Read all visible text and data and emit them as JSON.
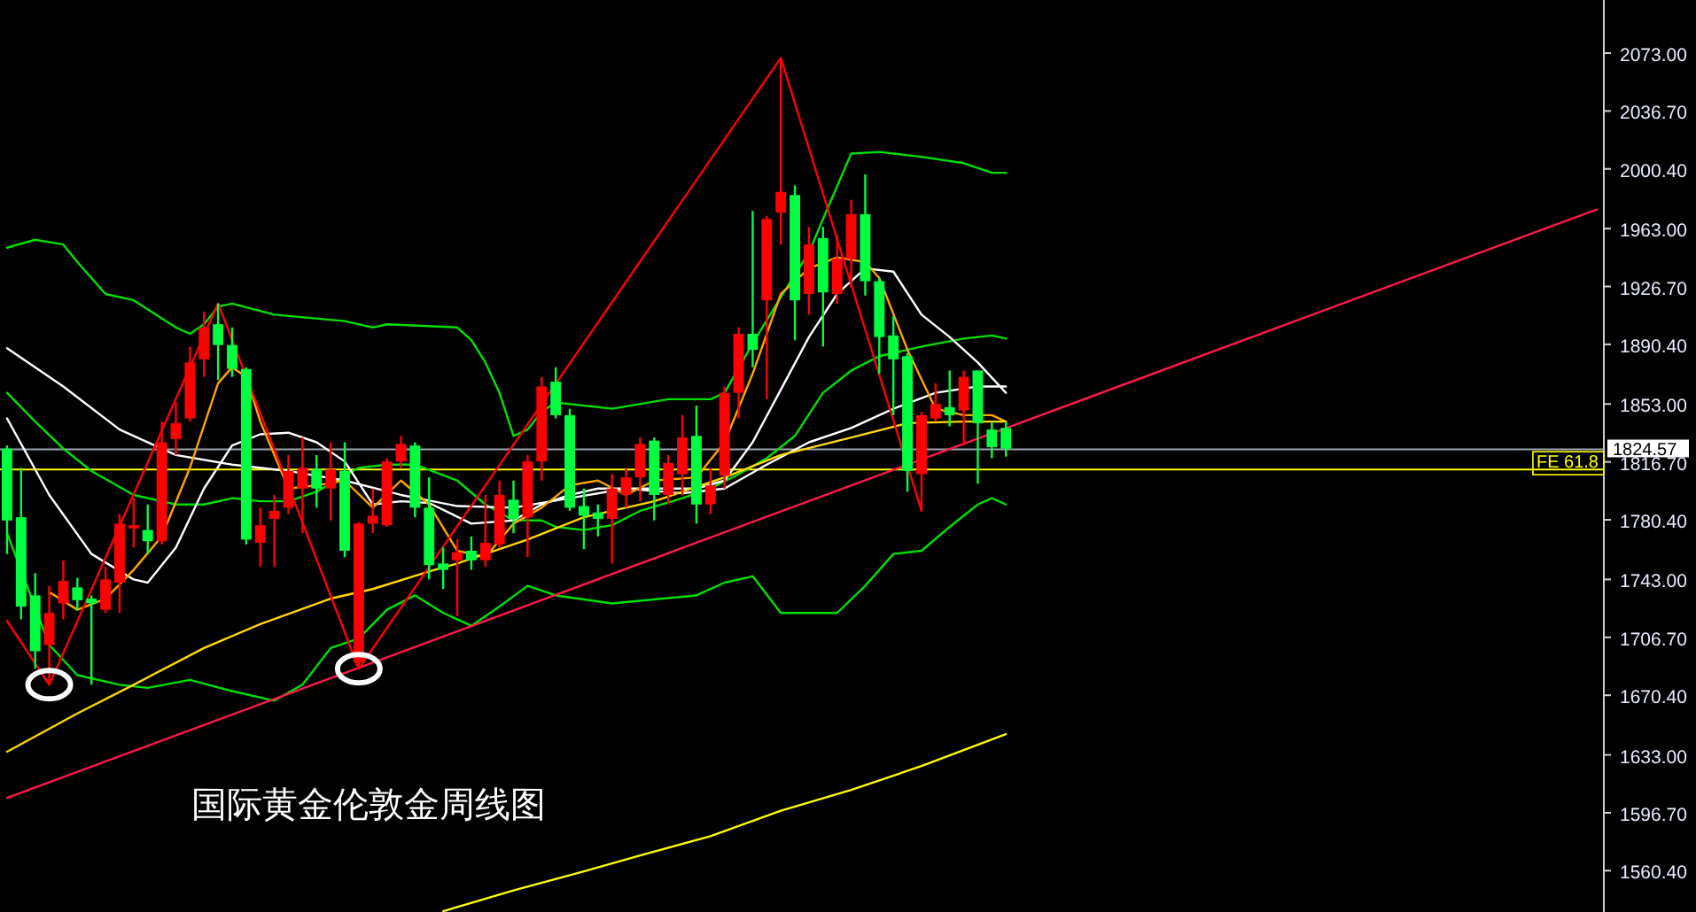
{
  "chart_data": {
    "type": "candlestick",
    "title": "国际黄金伦敦金周线图",
    "categories": [
      null,
      null,
      null,
      null,
      null,
      null,
      null,
      null,
      null,
      null,
      null,
      null,
      null,
      null,
      null,
      null,
      null,
      null,
      null,
      null,
      null,
      null,
      null,
      null,
      null,
      null,
      null,
      null,
      null,
      null,
      null,
      null,
      null,
      null,
      null,
      null,
      null,
      null,
      null,
      null,
      null,
      null,
      null,
      null,
      null,
      null,
      null,
      null,
      null,
      null,
      null,
      null,
      null,
      null,
      null,
      null,
      null,
      null,
      null,
      null,
      null,
      null,
      null,
      null,
      null,
      null,
      null,
      null,
      null,
      null,
      null,
      null,
      null,
      null,
      null,
      null,
      null,
      null,
      null,
      null,
      null,
      null,
      null,
      null,
      null,
      null,
      null,
      null,
      null,
      null,
      null,
      null,
      null,
      null,
      null,
      null,
      null,
      null,
      null,
      null,
      null,
      null,
      null,
      null,
      null,
      null,
      null,
      null,
      null,
      null,
      null,
      null,
      null,
      null
    ],
    "ohlc": [
      [
        1825,
        1827,
        1759,
        1780
      ],
      [
        1782,
        1813,
        1718,
        1726
      ],
      [
        1733,
        1747,
        1687,
        1698
      ],
      [
        1702,
        1739,
        1677,
        1722
      ],
      [
        1728,
        1755,
        1718,
        1742
      ],
      [
        1738,
        1744,
        1724,
        1730
      ],
      [
        1731,
        1733,
        1677,
        1728
      ],
      [
        1724,
        1751,
        1722,
        1743
      ],
      [
        1741,
        1784,
        1722,
        1778
      ],
      [
        1775,
        1794,
        1763,
        1777
      ],
      [
        1774,
        1790,
        1759,
        1767
      ],
      [
        1767,
        1842,
        1765,
        1829
      ],
      [
        1831,
        1854,
        1821,
        1841
      ],
      [
        1844,
        1889,
        1842,
        1879
      ],
      [
        1881,
        1911,
        1870,
        1901
      ],
      [
        1903,
        1916,
        1868,
        1890
      ],
      [
        1890,
        1901,
        1870,
        1875
      ],
      [
        1875,
        1876,
        1765,
        1768
      ],
      [
        1766,
        1788,
        1751,
        1777
      ],
      [
        1781,
        1796,
        1751,
        1786
      ],
      [
        1788,
        1821,
        1784,
        1811
      ],
      [
        1800,
        1832,
        1772,
        1813
      ],
      [
        1812,
        1821,
        1788,
        1800
      ],
      [
        1800,
        1829,
        1780,
        1812
      ],
      [
        1811,
        1829,
        1757,
        1761
      ],
      [
        1691,
        1779,
        1687,
        1778
      ],
      [
        1778,
        1800,
        1772,
        1783
      ],
      [
        1777,
        1819,
        1776,
        1817
      ],
      [
        1817,
        1833,
        1813,
        1828
      ],
      [
        1827,
        1829,
        1782,
        1788
      ],
      [
        1788,
        1807,
        1743,
        1752
      ],
      [
        1753,
        1763,
        1737,
        1749
      ],
      [
        1755,
        1768,
        1720,
        1760
      ],
      [
        1761,
        1770,
        1749,
        1755
      ],
      [
        1755,
        1796,
        1751,
        1766
      ],
      [
        1765,
        1805,
        1763,
        1796
      ],
      [
        1793,
        1805,
        1772,
        1781
      ],
      [
        1782,
        1821,
        1757,
        1817
      ],
      [
        1817,
        1870,
        1805,
        1864
      ],
      [
        1867,
        1876,
        1844,
        1846
      ],
      [
        1846,
        1850,
        1786,
        1788
      ],
      [
        1789,
        1800,
        1762,
        1783
      ],
      [
        1785,
        1790,
        1770,
        1781
      ],
      [
        1781,
        1809,
        1753,
        1800
      ],
      [
        1796,
        1813,
        1788,
        1807
      ],
      [
        1807,
        1832,
        1792,
        1828
      ],
      [
        1830,
        1832,
        1780,
        1796
      ],
      [
        1796,
        1821,
        1790,
        1816
      ],
      [
        1809,
        1846,
        1796,
        1832
      ],
      [
        1833,
        1852,
        1778,
        1790
      ],
      [
        1790,
        1813,
        1784,
        1802
      ],
      [
        1808,
        1864,
        1800,
        1860
      ],
      [
        1860,
        1901,
        1844,
        1897
      ],
      [
        1897,
        1974,
        1876,
        1887
      ],
      [
        1918,
        1971,
        1856,
        1969
      ],
      [
        1973,
        2070,
        1953,
        1986
      ],
      [
        1984,
        1990,
        1893,
        1918
      ],
      [
        1922,
        1964,
        1909,
        1953
      ],
      [
        1957,
        1964,
        1889,
        1923
      ],
      [
        1922,
        1959,
        1916,
        1944
      ],
      [
        1944,
        1981,
        1926,
        1972
      ],
      [
        1972,
        1997,
        1921,
        1930
      ],
      [
        1930,
        1932,
        1872,
        1895
      ],
      [
        1896,
        1908,
        1846,
        1881
      ],
      [
        1883,
        1885,
        1798,
        1811
      ],
      [
        1809,
        1848,
        1786,
        1846
      ],
      [
        1844,
        1866,
        1842,
        1853
      ],
      [
        1851,
        1874,
        1839,
        1846
      ],
      [
        1849,
        1874,
        1827,
        1870
      ],
      [
        1874,
        1874,
        1803,
        1841
      ],
      [
        1837,
        1842,
        1819,
        1826
      ],
      [
        1838,
        1842,
        1820,
        1825
      ],
      null,
      null,
      null,
      null,
      null,
      null,
      null,
      null,
      null,
      null,
      null,
      null,
      null,
      null,
      null,
      null,
      null,
      null,
      null,
      null,
      null,
      null,
      null,
      null,
      null,
      null,
      null,
      null,
      null,
      null,
      null,
      null,
      null,
      null,
      null,
      null,
      null,
      null,
      null,
      null,
      null,
      null
    ],
    "ylim": [
      1534.5,
      2106.3
    ],
    "yticks": [
      {
        "value": 2073,
        "label": "2073.00"
      },
      {
        "value": 2036.7,
        "label": "2036.70"
      },
      {
        "value": 2000.4,
        "label": "2000.40"
      },
      {
        "value": 1963,
        "label": "1963.00"
      },
      {
        "value": 1926.7,
        "label": "1926.70"
      },
      {
        "value": 1890.4,
        "label": "1890.40"
      },
      {
        "value": 1853,
        "label": "1853.00"
      },
      {
        "value": 1816.7,
        "label": "1816.70"
      },
      {
        "value": 1780.4,
        "label": "1780.40"
      },
      {
        "value": 1743,
        "label": "1743.00"
      },
      {
        "value": 1706.7,
        "label": "1706.70"
      },
      {
        "value": 1670.4,
        "label": "1670.40"
      },
      {
        "value": 1633,
        "label": "1633.00"
      },
      {
        "value": 1596.7,
        "label": "1596.70"
      },
      {
        "value": 1560.4,
        "label": "1560.40"
      }
    ],
    "tick_labels": "y",
    "series": [
      {
        "type": "line",
        "color": "#00e000",
        "values": [
          1951,
          null,
          1956,
          null,
          1953,
          1942,
          null,
          1922,
          null,
          1918,
          null,
          null,
          1901,
          1897,
          1903,
          1914,
          1916,
          null,
          null,
          1909,
          null,
          null,
          null,
          null,
          1905,
          null,
          1901,
          1903,
          null,
          null,
          null,
          null,
          1901,
          1893,
          1879,
          1860,
          1833,
          1837,
          1848,
          1854,
          null,
          null,
          null,
          1850,
          null,
          null,
          null,
          1856,
          null,
          null,
          1856,
          1860,
          null,
          1891,
          null,
          1920,
          null,
          1948,
          1969,
          null,
          2010,
          null,
          2011,
          null,
          null,
          2008,
          null,
          null,
          2004,
          null,
          1998,
          1998,
          null,
          null,
          null,
          null,
          null,
          null,
          null,
          null,
          null,
          null,
          null,
          null,
          null,
          null,
          null,
          null,
          null,
          null,
          null,
          null,
          null,
          null,
          null,
          null,
          null,
          null,
          null,
          null,
          null,
          null,
          null,
          null,
          null,
          null,
          null,
          null,
          null,
          null,
          null,
          null,
          null,
          null
        ]
      },
      {
        "type": "line",
        "color": "#00e000",
        "values": [
          1860,
          null,
          1842,
          null,
          1825,
          null,
          1811,
          null,
          null,
          1796,
          null,
          null,
          1790,
          null,
          1790,
          null,
          1794,
          null,
          1792,
          null,
          1792,
          null,
          1798,
          null,
          null,
          1813,
          null,
          1815,
          null,
          1815,
          null,
          null,
          1805,
          null,
          1790,
          null,
          1780,
          null,
          1780,
          1776,
          null,
          1774,
          null,
          1777,
          null,
          1786,
          null,
          null,
          1794,
          null,
          1800,
          null,
          1809,
          null,
          1819,
          null,
          1833,
          null,
          1860,
          null,
          1874,
          null,
          1883,
          null,
          null,
          1889,
          null,
          null,
          1894,
          null,
          1896,
          1894,
          null,
          null,
          null,
          null,
          null,
          null,
          null,
          null,
          null,
          null,
          null,
          null,
          null,
          null,
          null,
          null,
          null,
          null,
          null,
          null,
          null,
          null,
          null,
          null,
          null,
          null,
          null,
          null,
          null,
          null,
          null,
          null,
          null,
          null,
          null,
          null,
          null,
          null,
          null,
          null,
          null,
          null
        ]
      },
      {
        "type": "line",
        "color": "#00e000",
        "values": [
          1772,
          null,
          null,
          1702,
          null,
          1683,
          null,
          null,
          1677,
          null,
          1675,
          null,
          null,
          1680,
          null,
          null,
          1673,
          null,
          null,
          1667,
          null,
          1677,
          null,
          1700,
          null,
          1706,
          null,
          1724,
          null,
          1733,
          null,
          1722,
          null,
          1714,
          null,
          1726,
          null,
          1739,
          null,
          1733,
          null,
          null,
          null,
          1728,
          null,
          null,
          null,
          null,
          null,
          1733,
          null,
          1741,
          null,
          1745,
          null,
          1722,
          null,
          null,
          null,
          1722,
          null,
          1739,
          null,
          1759,
          null,
          1761,
          null,
          1776,
          null,
          1790,
          1794,
          1790,
          null,
          null,
          null,
          null,
          null,
          null,
          null,
          null,
          null,
          null,
          null,
          null,
          null,
          null,
          null,
          null,
          null,
          null,
          null,
          null,
          null,
          null,
          null,
          null,
          null,
          null,
          null,
          null,
          null,
          null,
          null,
          null,
          null,
          null,
          null,
          null,
          null,
          null,
          null,
          null,
          null,
          null
        ]
      },
      {
        "type": "line",
        "color": "#ffffff",
        "values": [
          1844,
          null,
          null,
          1796,
          null,
          null,
          1759,
          null,
          null,
          1743,
          1741,
          null,
          1763,
          null,
          1800,
          null,
          1827,
          null,
          1834,
          null,
          1835,
          null,
          1829,
          null,
          1817,
          null,
          1790,
          null,
          1792,
          null,
          1791,
          null,
          null,
          1778,
          null,
          null,
          1780,
          null,
          1790,
          null,
          1796,
          null,
          1800,
          null,
          null,
          1800,
          null,
          null,
          null,
          1800,
          null,
          1805,
          null,
          1829,
          null,
          1862,
          null,
          1895,
          null,
          1922,
          null,
          1938,
          null,
          1936,
          null,
          1909,
          null,
          1895,
          null,
          1879,
          null,
          1860,
          null,
          null,
          null,
          null,
          null,
          null,
          null,
          null,
          null,
          null,
          null,
          null,
          null,
          null,
          null,
          null,
          null,
          null,
          null,
          null,
          null,
          null,
          null,
          null,
          null,
          null,
          null,
          null,
          null,
          null,
          null,
          null,
          null,
          null,
          null,
          null,
          null,
          null,
          null,
          null,
          null,
          null
        ]
      },
      {
        "type": "line",
        "color": "#ffffff",
        "values": [
          1888,
          null,
          null,
          null,
          1864,
          null,
          null,
          null,
          1837,
          null,
          null,
          null,
          1821,
          null,
          null,
          null,
          1815,
          null,
          null,
          null,
          1811,
          null,
          null,
          null,
          1805,
          null,
          null,
          null,
          1796,
          null,
          null,
          null,
          1789,
          null,
          null,
          null,
          1788,
          null,
          null,
          null,
          1794,
          null,
          null,
          null,
          1800,
          null,
          null,
          null,
          1797,
          null,
          null,
          1800,
          null,
          null,
          1815,
          null,
          null,
          1829,
          null,
          null,
          1838,
          null,
          null,
          1850,
          null,
          null,
          1860,
          null,
          null,
          1864,
          null,
          1864,
          null,
          null,
          null,
          null,
          null,
          null,
          null,
          null,
          null,
          null,
          null,
          null,
          null,
          null,
          null,
          null,
          null,
          null,
          null,
          null,
          null,
          null,
          null,
          null,
          null,
          null,
          null,
          null,
          null,
          null,
          null,
          null,
          null,
          null,
          null,
          null,
          null,
          null,
          null,
          null,
          null,
          null
        ]
      },
      {
        "type": "line",
        "color": "#ffa500",
        "values": [
          null,
          null,
          null,
          1735,
          null,
          1724,
          null,
          1731,
          null,
          1749,
          null,
          1770,
          null,
          1813,
          null,
          1866,
          1876,
          1870,
          1842,
          null,
          1800,
          null,
          1802,
          null,
          1805,
          null,
          1788,
          null,
          1805,
          null,
          1790,
          null,
          1761,
          null,
          1757,
          null,
          1778,
          null,
          1788,
          null,
          1802,
          null,
          1805,
          null,
          1796,
          null,
          1805,
          null,
          null,
          1807,
          null,
          1829,
          null,
          1872,
          null,
          1922,
          null,
          1938,
          null,
          1945,
          null,
          1942,
          1932,
          null,
          1887,
          null,
          1850,
          null,
          1846,
          null,
          1846,
          1842,
          null,
          null,
          null,
          null,
          null,
          null,
          null,
          null,
          null,
          null,
          null,
          null,
          null,
          null,
          null,
          null,
          null,
          null,
          null,
          null,
          null,
          null,
          null,
          null,
          null,
          null,
          null,
          null,
          null,
          null,
          null,
          null,
          null,
          null,
          null,
          null,
          null,
          null,
          null,
          null,
          null,
          null
        ]
      },
      {
        "type": "line",
        "color": "#ffd700",
        "values": [
          1635,
          null,
          null,
          null,
          null,
          1659,
          null,
          null,
          null,
          1677,
          null,
          null,
          null,
          null,
          1700,
          null,
          null,
          null,
          1715,
          null,
          null,
          null,
          null,
          1731,
          null,
          null,
          1737,
          null,
          null,
          null,
          1748,
          null,
          1753,
          null,
          null,
          null,
          null,
          1768,
          null,
          null,
          null,
          1782,
          null,
          null,
          null,
          null,
          1792,
          null,
          null,
          null,
          null,
          1807,
          null,
          null,
          null,
          1821,
          null,
          null,
          null,
          null,
          1832,
          null,
          null,
          null,
          1841,
          null,
          null,
          null,
          1842,
          null,
          null,
          1842,
          null,
          null,
          null,
          null,
          null,
          null,
          null,
          null,
          null,
          null,
          null,
          null,
          null,
          null,
          null,
          null,
          null,
          null,
          null,
          null,
          null,
          null,
          null,
          null,
          null,
          null,
          null,
          null,
          null,
          null,
          null,
          null,
          null,
          null,
          null,
          null,
          null,
          null,
          null,
          null,
          null,
          null
        ]
      },
      {
        "type": "line",
        "color": "#ffff00",
        "values": [
          null,
          null,
          null,
          null,
          null,
          null,
          null,
          null,
          null,
          null,
          null,
          null,
          null,
          null,
          null,
          null,
          null,
          null,
          null,
          null,
          null,
          null,
          null,
          null,
          null,
          null,
          null,
          null,
          null,
          null,
          null,
          1535,
          null,
          null,
          null,
          null,
          1548,
          null,
          null,
          null,
          null,
          1560,
          null,
          null,
          null,
          1570,
          null,
          null,
          null,
          null,
          1582,
          null,
          null,
          null,
          null,
          1598,
          null,
          null,
          null,
          null,
          1611,
          null,
          null,
          null,
          null,
          1626,
          null,
          null,
          null,
          null,
          null,
          1646,
          null,
          null,
          null,
          null,
          null,
          null,
          null,
          null,
          null,
          null,
          null,
          null,
          null,
          null,
          null,
          null,
          null,
          null,
          null,
          null,
          null,
          null,
          null,
          null,
          null,
          null,
          null,
          null,
          null,
          null,
          null,
          null,
          null,
          null,
          null,
          null,
          null,
          null,
          null,
          null,
          null,
          null
        ]
      },
      {
        "type": "line",
        "color": "#ff1a4a",
        "values": [
          1606,
          null,
          null,
          null,
          null,
          null,
          null,
          null,
          null,
          null,
          null,
          null,
          null,
          null,
          null,
          null,
          null,
          null,
          null,
          null,
          null,
          null,
          null,
          null,
          null,
          null,
          null,
          null,
          null,
          null,
          null,
          null,
          null,
          null,
          null,
          null,
          null,
          null,
          null,
          null,
          null,
          null,
          null,
          null,
          null,
          null,
          null,
          null,
          null,
          null,
          null,
          null,
          null,
          null,
          null,
          null,
          null,
          null,
          null,
          null,
          null,
          null,
          null,
          null,
          null,
          null,
          null,
          null,
          null,
          null,
          null,
          null,
          null,
          null,
          null,
          null,
          null,
          null,
          null,
          null,
          null,
          null,
          null,
          null,
          null,
          null,
          null,
          null,
          null,
          null,
          null,
          null,
          null,
          null,
          null,
          null,
          null,
          null,
          null,
          null,
          null,
          null,
          null,
          null,
          null,
          null,
          null,
          null,
          null,
          null,
          null,
          null,
          null,
          1975
        ]
      },
      {
        "type": "line",
        "color": "#ff0000",
        "values": [
          1717,
          null,
          null,
          1677,
          null,
          null,
          null,
          null,
          null,
          null,
          null,
          null,
          null,
          null,
          null,
          1916,
          null,
          null,
          null,
          null,
          null,
          null,
          null,
          null,
          null,
          1687,
          null,
          null,
          null,
          null,
          null,
          null,
          null,
          null,
          null,
          null,
          null,
          null,
          null,
          null,
          null,
          null,
          null,
          null,
          null,
          null,
          null,
          null,
          null,
          null,
          null,
          null,
          null,
          null,
          null,
          2070,
          null,
          null,
          null,
          null,
          null,
          null,
          null,
          null,
          null,
          1786,
          null,
          null,
          null,
          null,
          null,
          null,
          null,
          null,
          null,
          null,
          null,
          null,
          null,
          null,
          null,
          null,
          null,
          null,
          null,
          null,
          null,
          null,
          null,
          null,
          null,
          null,
          null,
          null,
          null,
          null,
          null,
          null,
          null,
          null,
          null,
          null,
          null,
          null,
          null,
          null,
          null,
          null,
          null,
          null,
          null,
          null,
          null,
          null
        ]
      }
    ],
    "ref_lines": [
      {
        "axis": "y",
        "value": 1824.57,
        "label": "1824.57",
        "color": "#a0a8b0"
      },
      {
        "axis": "y",
        "value": 1812,
        "label": "FE 61.8",
        "color": "#ffff00"
      }
    ]
  }
}
